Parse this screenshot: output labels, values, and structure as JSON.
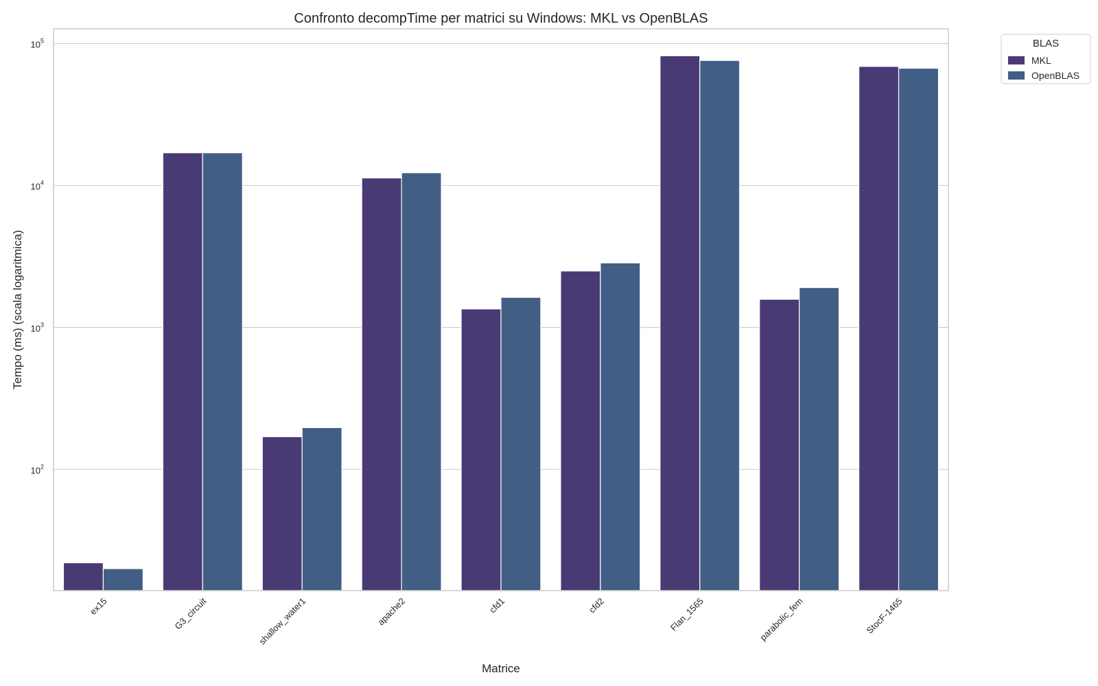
{
  "chart_data": {
    "type": "bar",
    "title": "Confronto decompTime per matrici su Windows: MKL vs OpenBLAS",
    "xlabel": "Matrice",
    "ylabel": "Tempo (ms) (scala logaritmica)",
    "yscale": "log",
    "ylim": [
      14,
      127000
    ],
    "yticks": [
      {
        "value": 100,
        "base": "10",
        "exp": "2"
      },
      {
        "value": 1000,
        "base": "10",
        "exp": "3"
      },
      {
        "value": 10000,
        "base": "10",
        "exp": "4"
      },
      {
        "value": 100000,
        "base": "10",
        "exp": "5"
      }
    ],
    "grid": "horizontal",
    "categories": [
      "ex15",
      "G3_circuit",
      "shallow_water1",
      "apache2",
      "cfd1",
      "cfd2",
      "Flan_1565",
      "parabolic_fem",
      "StocF-1465"
    ],
    "legend": {
      "title": "BLAS",
      "position": "outside-top-right"
    },
    "series": [
      {
        "name": "MKL",
        "color": "#4a3a74",
        "values": [
          22,
          17000,
          170,
          11300,
          1350,
          2500,
          82000,
          1580,
          69000
        ]
      },
      {
        "name": "OpenBLAS",
        "color": "#415e85",
        "values": [
          20,
          17000,
          197,
          12300,
          1630,
          2850,
          76000,
          1910,
          67000
        ]
      }
    ]
  }
}
